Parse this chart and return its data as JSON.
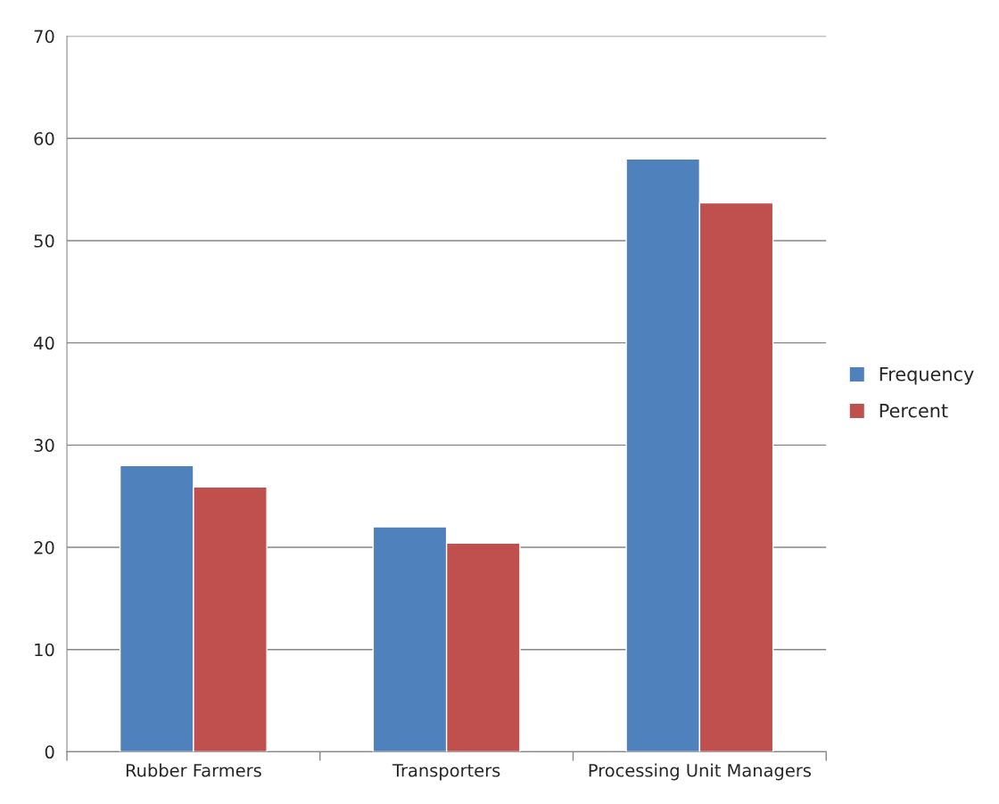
{
  "chart_data": {
    "type": "bar",
    "categories": [
      "Rubber Farmers",
      "Transporters",
      "Processing Unit Managers"
    ],
    "series": [
      {
        "name": "Frequency",
        "color": "#4f81bd",
        "values": [
          28,
          22,
          58
        ]
      },
      {
        "name": "Percent",
        "color": "#c0504d",
        "values": [
          25.9,
          20.4,
          53.7
        ]
      }
    ],
    "ylim": [
      0,
      70
    ],
    "yticks": [
      0,
      10,
      20,
      30,
      40,
      50,
      60,
      70
    ],
    "grid": "y",
    "legend": "right"
  }
}
